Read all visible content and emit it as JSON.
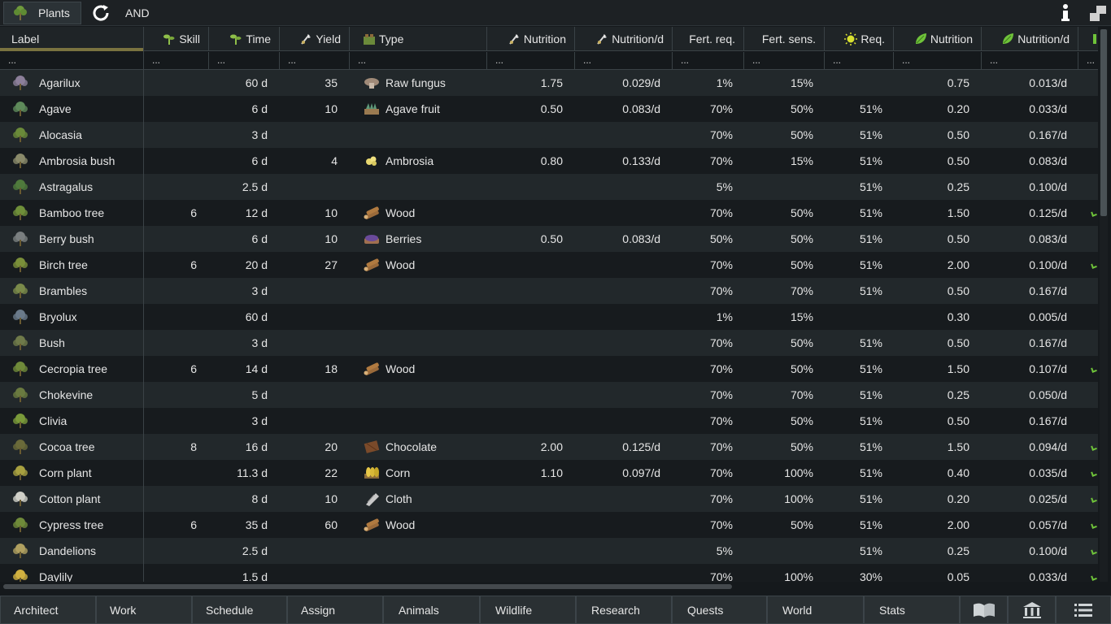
{
  "topbar": {
    "tab_label": "Plants",
    "mode_label": "AND"
  },
  "columns": {
    "label": "Label",
    "skill": "Skill",
    "time": "Time",
    "yield": "Yield",
    "type": "Type",
    "nutrition": "Nutrition",
    "nutrition_d": "Nutrition/d",
    "fert_req": "Fert. req.",
    "fert_sens": "Fert. sens.",
    "req": "Req.",
    "nutrition2": "Nutrition",
    "nutrition2_d": "Nutrition/d"
  },
  "filter_placeholder": "...",
  "rows": [
    {
      "label": "Agarilux",
      "skill": "",
      "time": "60 d",
      "yield": "35",
      "type": "Raw fungus",
      "type_icon": "fungus-icon",
      "nutrition": "1.75",
      "nutrition_d": "0.029/d",
      "fert_req": "1%",
      "fert_sens": "15%",
      "req": "",
      "n2": "0.75",
      "n2_d": "0.013/d",
      "mark": false
    },
    {
      "label": "Agave",
      "skill": "",
      "time": "6 d",
      "yield": "10",
      "type": "Agave fruit",
      "type_icon": "agave-fruit-icon",
      "nutrition": "0.50",
      "nutrition_d": "0.083/d",
      "fert_req": "70%",
      "fert_sens": "50%",
      "req": "51%",
      "n2": "0.20",
      "n2_d": "0.033/d",
      "mark": false
    },
    {
      "label": "Alocasia",
      "skill": "",
      "time": "3 d",
      "yield": "",
      "type": "",
      "type_icon": "",
      "nutrition": "",
      "nutrition_d": "",
      "fert_req": "70%",
      "fert_sens": "50%",
      "req": "51%",
      "n2": "0.50",
      "n2_d": "0.167/d",
      "mark": false
    },
    {
      "label": "Ambrosia bush",
      "skill": "",
      "time": "6 d",
      "yield": "4",
      "type": "Ambrosia",
      "type_icon": "ambrosia-icon",
      "nutrition": "0.80",
      "nutrition_d": "0.133/d",
      "fert_req": "70%",
      "fert_sens": "15%",
      "req": "51%",
      "n2": "0.50",
      "n2_d": "0.083/d",
      "mark": false
    },
    {
      "label": "Astragalus",
      "skill": "",
      "time": "2.5 d",
      "yield": "",
      "type": "",
      "type_icon": "",
      "nutrition": "",
      "nutrition_d": "",
      "fert_req": "5%",
      "fert_sens": "",
      "req": "51%",
      "n2": "0.25",
      "n2_d": "0.100/d",
      "mark": false
    },
    {
      "label": "Bamboo tree",
      "skill": "6",
      "time": "12 d",
      "yield": "10",
      "type": "Wood",
      "type_icon": "wood-icon",
      "nutrition": "",
      "nutrition_d": "",
      "fert_req": "70%",
      "fert_sens": "50%",
      "req": "51%",
      "n2": "1.50",
      "n2_d": "0.125/d",
      "mark": true
    },
    {
      "label": "Berry bush",
      "skill": "",
      "time": "6 d",
      "yield": "10",
      "type": "Berries",
      "type_icon": "berries-icon",
      "nutrition": "0.50",
      "nutrition_d": "0.083/d",
      "fert_req": "50%",
      "fert_sens": "50%",
      "req": "51%",
      "n2": "0.50",
      "n2_d": "0.083/d",
      "mark": false
    },
    {
      "label": "Birch tree",
      "skill": "6",
      "time": "20 d",
      "yield": "27",
      "type": "Wood",
      "type_icon": "wood-icon",
      "nutrition": "",
      "nutrition_d": "",
      "fert_req": "70%",
      "fert_sens": "50%",
      "req": "51%",
      "n2": "2.00",
      "n2_d": "0.100/d",
      "mark": true
    },
    {
      "label": "Brambles",
      "skill": "",
      "time": "3 d",
      "yield": "",
      "type": "",
      "type_icon": "",
      "nutrition": "",
      "nutrition_d": "",
      "fert_req": "70%",
      "fert_sens": "70%",
      "req": "51%",
      "n2": "0.50",
      "n2_d": "0.167/d",
      "mark": false
    },
    {
      "label": "Bryolux",
      "skill": "",
      "time": "60 d",
      "yield": "",
      "type": "",
      "type_icon": "",
      "nutrition": "",
      "nutrition_d": "",
      "fert_req": "1%",
      "fert_sens": "15%",
      "req": "",
      "n2": "0.30",
      "n2_d": "0.005/d",
      "mark": false
    },
    {
      "label": "Bush",
      "skill": "",
      "time": "3 d",
      "yield": "",
      "type": "",
      "type_icon": "",
      "nutrition": "",
      "nutrition_d": "",
      "fert_req": "70%",
      "fert_sens": "50%",
      "req": "51%",
      "n2": "0.50",
      "n2_d": "0.167/d",
      "mark": false
    },
    {
      "label": "Cecropia tree",
      "skill": "6",
      "time": "14 d",
      "yield": "18",
      "type": "Wood",
      "type_icon": "wood-icon",
      "nutrition": "",
      "nutrition_d": "",
      "fert_req": "70%",
      "fert_sens": "50%",
      "req": "51%",
      "n2": "1.50",
      "n2_d": "0.107/d",
      "mark": true
    },
    {
      "label": "Chokevine",
      "skill": "",
      "time": "5 d",
      "yield": "",
      "type": "",
      "type_icon": "",
      "nutrition": "",
      "nutrition_d": "",
      "fert_req": "70%",
      "fert_sens": "70%",
      "req": "51%",
      "n2": "0.25",
      "n2_d": "0.050/d",
      "mark": false
    },
    {
      "label": "Clivia",
      "skill": "",
      "time": "3 d",
      "yield": "",
      "type": "",
      "type_icon": "",
      "nutrition": "",
      "nutrition_d": "",
      "fert_req": "70%",
      "fert_sens": "50%",
      "req": "51%",
      "n2": "0.50",
      "n2_d": "0.167/d",
      "mark": false
    },
    {
      "label": "Cocoa tree",
      "skill": "8",
      "time": "16 d",
      "yield": "20",
      "type": "Chocolate",
      "type_icon": "chocolate-icon",
      "nutrition": "2.00",
      "nutrition_d": "0.125/d",
      "fert_req": "70%",
      "fert_sens": "50%",
      "req": "51%",
      "n2": "1.50",
      "n2_d": "0.094/d",
      "mark": true
    },
    {
      "label": "Corn plant",
      "skill": "",
      "time": "11.3 d",
      "yield": "22",
      "type": "Corn",
      "type_icon": "corn-icon",
      "nutrition": "1.10",
      "nutrition_d": "0.097/d",
      "fert_req": "70%",
      "fert_sens": "100%",
      "req": "51%",
      "n2": "0.40",
      "n2_d": "0.035/d",
      "mark": true
    },
    {
      "label": "Cotton plant",
      "skill": "",
      "time": "8 d",
      "yield": "10",
      "type": "Cloth",
      "type_icon": "cloth-icon",
      "nutrition": "",
      "nutrition_d": "",
      "fert_req": "70%",
      "fert_sens": "100%",
      "req": "51%",
      "n2": "0.20",
      "n2_d": "0.025/d",
      "mark": true
    },
    {
      "label": "Cypress tree",
      "skill": "6",
      "time": "35 d",
      "yield": "60",
      "type": "Wood",
      "type_icon": "wood-icon",
      "nutrition": "",
      "nutrition_d": "",
      "fert_req": "70%",
      "fert_sens": "50%",
      "req": "51%",
      "n2": "2.00",
      "n2_d": "0.057/d",
      "mark": true
    },
    {
      "label": "Dandelions",
      "skill": "",
      "time": "2.5 d",
      "yield": "",
      "type": "",
      "type_icon": "",
      "nutrition": "",
      "nutrition_d": "",
      "fert_req": "5%",
      "fert_sens": "",
      "req": "51%",
      "n2": "0.25",
      "n2_d": "0.100/d",
      "mark": true
    },
    {
      "label": "Daylily",
      "skill": "",
      "time": "1.5 d",
      "yield": "",
      "type": "",
      "type_icon": "",
      "nutrition": "",
      "nutrition_d": "",
      "fert_req": "70%",
      "fert_sens": "100%",
      "req": "30%",
      "n2": "0.05",
      "n2_d": "0.033/d",
      "mark": true
    }
  ],
  "bottom_tabs": [
    "Architect",
    "Work",
    "Schedule",
    "Assign",
    "Animals",
    "Wildlife",
    "Research",
    "Quests",
    "World",
    "Stats"
  ],
  "bottom_icons": [
    "book-icon",
    "building-icon",
    "menu-icon"
  ],
  "colors": {
    "accent_green": "#6fc33a",
    "label_underline": "#7a7340"
  }
}
